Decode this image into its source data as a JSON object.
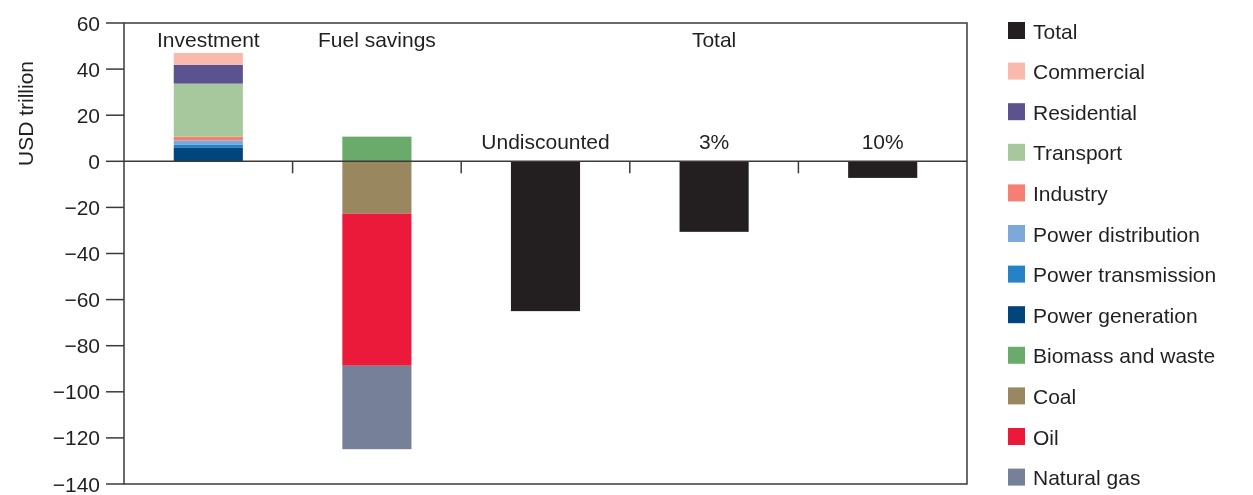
{
  "chart_data": {
    "type": "bar",
    "stacked": true,
    "ylabel": "USD trillion",
    "categories": [
      "Investment",
      "Fuel savings",
      "Undiscounted",
      "3%",
      "10%"
    ],
    "ylim": [
      -140,
      60
    ],
    "yticks": [
      -140,
      -120,
      -100,
      -80,
      -60,
      -40,
      -20,
      0,
      20,
      40,
      60
    ],
    "legend": "right",
    "grid": false,
    "annotations": [
      "Total"
    ],
    "series": [
      {
        "name": "Total",
        "color": "#231f20",
        "values": [
          null,
          null,
          -65,
          -30.6,
          -7.2
        ]
      },
      {
        "name": "Power generation",
        "color": "#00457c",
        "values": [
          5.8,
          null,
          null,
          null,
          null
        ]
      },
      {
        "name": "Power transmission",
        "color": "#2383c6",
        "values": [
          1.3,
          null,
          null,
          null,
          null
        ]
      },
      {
        "name": "Power distribution",
        "color": "#7fa8da",
        "values": [
          2,
          null,
          null,
          null,
          null
        ]
      },
      {
        "name": "Industry",
        "color": "#f47f72",
        "values": [
          1.6,
          null,
          null,
          null,
          null
        ]
      },
      {
        "name": "Transport",
        "color": "#a6c89c",
        "values": [
          23,
          null,
          null,
          null,
          null
        ]
      },
      {
        "name": "Residential",
        "color": "#5b5290",
        "values": [
          8.1,
          null,
          null,
          null,
          null
        ]
      },
      {
        "name": "Commercial",
        "color": "#f9b9ac",
        "values": [
          5.2,
          null,
          null,
          null,
          null
        ]
      },
      {
        "name": "Biomass and waste",
        "color": "#6aaa6a",
        "values": [
          null,
          10.7,
          null,
          null,
          null
        ]
      },
      {
        "name": "Coal",
        "color": "#998760",
        "values": [
          null,
          -22.7,
          null,
          null,
          null
        ]
      },
      {
        "name": "Oil",
        "color": "#ec1a3a",
        "values": [
          null,
          -66,
          null,
          null,
          null
        ]
      },
      {
        "name": "Natural gas",
        "color": "#768099",
        "values": [
          null,
          -36.2,
          null,
          null,
          null
        ]
      }
    ]
  }
}
